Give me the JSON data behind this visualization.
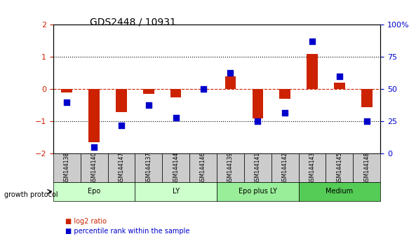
{
  "title": "GDS2448 / 10931",
  "samples": [
    "GSM144138",
    "GSM144140",
    "GSM144147",
    "GSM144137",
    "GSM144144",
    "GSM144146",
    "GSM144139",
    "GSM144141",
    "GSM144142",
    "GSM144143",
    "GSM144145",
    "GSM144148"
  ],
  "log2_ratio": [
    -0.1,
    -1.65,
    -0.7,
    -0.15,
    -0.25,
    0.0,
    0.4,
    -0.9,
    -0.3,
    1.1,
    0.2,
    -0.55
  ],
  "percentile_rank": [
    40,
    5,
    22,
    38,
    28,
    50,
    63,
    25,
    32,
    87,
    60,
    25
  ],
  "groups": [
    {
      "label": "Epo",
      "start": 0,
      "end": 2,
      "color": "#ccffcc"
    },
    {
      "label": "LY",
      "start": 3,
      "end": 5,
      "color": "#ccffcc"
    },
    {
      "label": "Epo plus LY",
      "start": 6,
      "end": 8,
      "color": "#99ee99"
    },
    {
      "label": "Medium",
      "start": 9,
      "end": 11,
      "color": "#55cc55"
    }
  ],
  "bar_color": "#cc2200",
  "dot_color": "#0000cc",
  "ylim_left": [
    -2,
    2
  ],
  "ylim_right": [
    0,
    100
  ],
  "yticks_left": [
    -2,
    -1,
    0,
    1,
    2
  ],
  "yticks_right": [
    0,
    25,
    50,
    75,
    100
  ],
  "ylabel_left_color": "#cc2200",
  "ylabel_right_color": "#0000cc",
  "hlines": [
    -1,
    0,
    1
  ],
  "hline_colors": {
    "0": "#cc2200",
    "-1": "#000000",
    "1": "#000000"
  },
  "hline_styles": {
    "0": "dashed",
    "-1": "dotted",
    "1": "dotted"
  },
  "legend_items": [
    {
      "label": "log2 ratio",
      "color": "#cc2200",
      "marker": "s"
    },
    {
      "label": "percentile rank within the sample",
      "color": "#0000cc",
      "marker": "s"
    }
  ],
  "growth_protocol_label": "growth protocol",
  "sample_box_color": "#cccccc"
}
